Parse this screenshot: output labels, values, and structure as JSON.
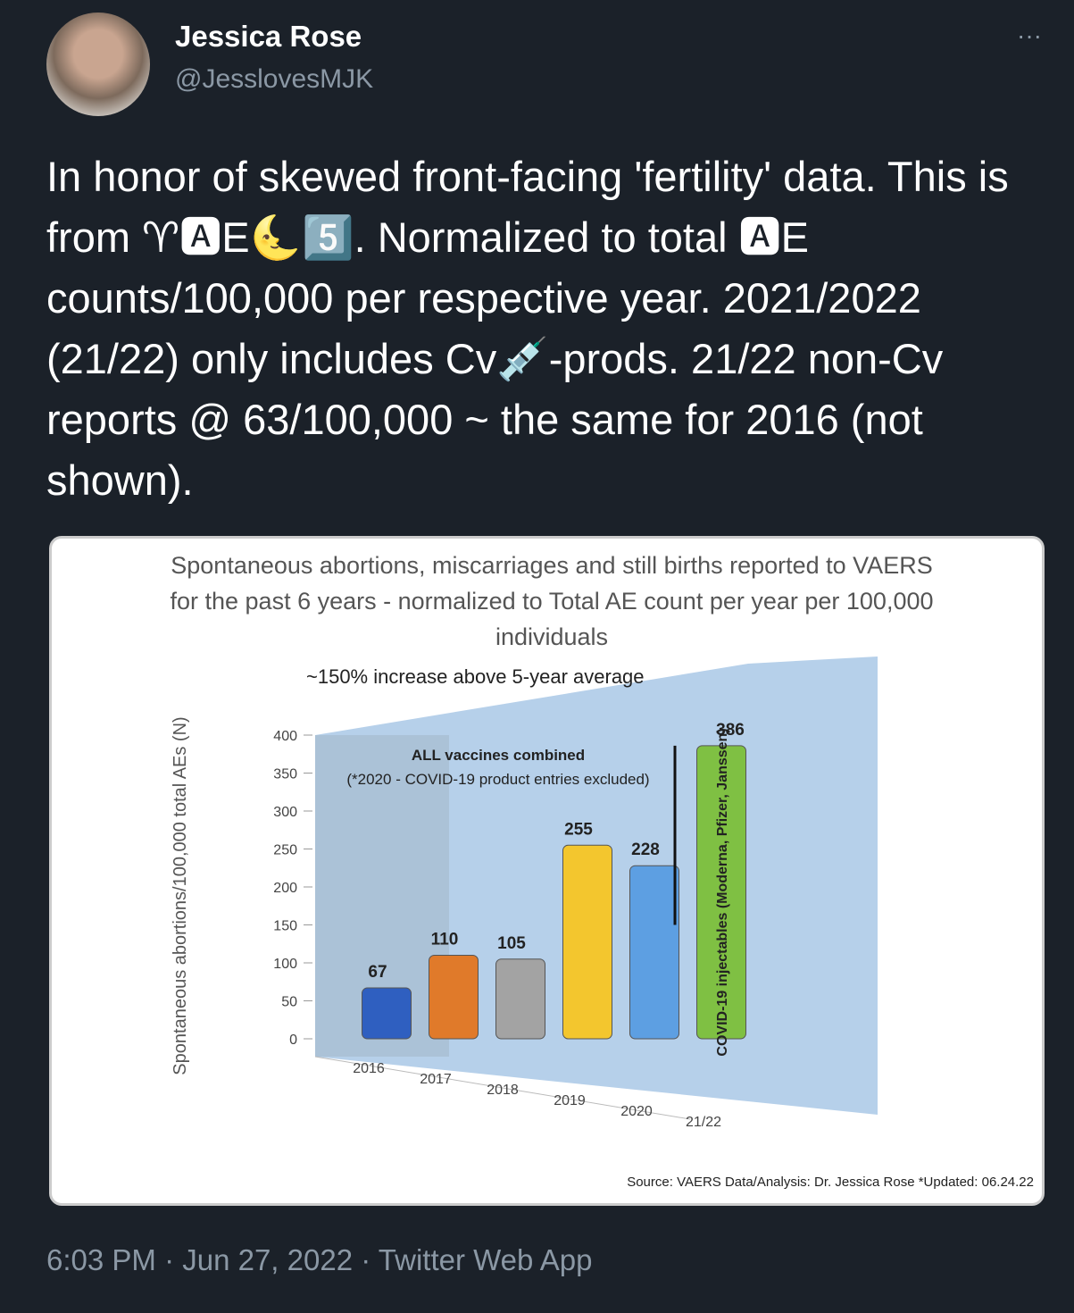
{
  "tweet": {
    "author": "Jessica Rose",
    "handle": "@JesslovesMJK",
    "menu": "···",
    "text": "In honor of skewed front-facing 'fertility' data. This is from ♈🅰E🌜5️⃣. Normalized to total 🅰E counts/100,000 per respective year. 2021/2022 (21/22) only includes Cv💉-prods. 21/22 non-Cv reports @ 63/100,000 ~ the same for 2016 (not shown).",
    "footer": "6:03 PM · Jun 27, 2022 · Twitter Web App"
  },
  "chart_data": {
    "type": "bar",
    "title": "Spontaneous abortions, miscarriages and still births reported to VAERS for the past 6 years - normalized to Total AE count per year per 100,000 individuals",
    "y_label": "Spontaneous abortions/100,000 total AEs (N)",
    "categories": [
      "2016",
      "2017",
      "2018",
      "2019",
      "2020",
      "21/22"
    ],
    "values": [
      67,
      110,
      105,
      255,
      228,
      386
    ],
    "colors": [
      "#2f5fc0",
      "#e07a2a",
      "#a3a3a3",
      "#f3c62e",
      "#5d9fe2",
      "#7fc043"
    ],
    "ylim": [
      0,
      400
    ],
    "yticks": [
      0,
      50,
      100,
      150,
      200,
      250,
      300,
      350,
      400
    ],
    "annotations": {
      "increase": "~150% increase above 5-year average",
      "combined": "ALL vaccines combined",
      "excluded": "(*2020 - COVID-19 product entries excluded)",
      "bar_label": "COVID-19 injectables (Moderna, Pfizer, Janssen)",
      "source": "Source: VAERS Data/Analysis: Dr. Jessica Rose *Updated: 06.24.22"
    }
  }
}
